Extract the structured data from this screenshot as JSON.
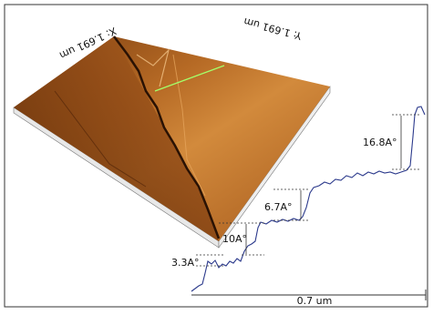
{
  "image": {
    "x_size": "X: 1.691 um",
    "y_size": "Y: 1.691 um"
  },
  "profile": {
    "steps": [
      "3.3A°",
      "10A°",
      "6.7A°",
      "16.8A°"
    ],
    "scale_bar": "0.7 um"
  }
}
